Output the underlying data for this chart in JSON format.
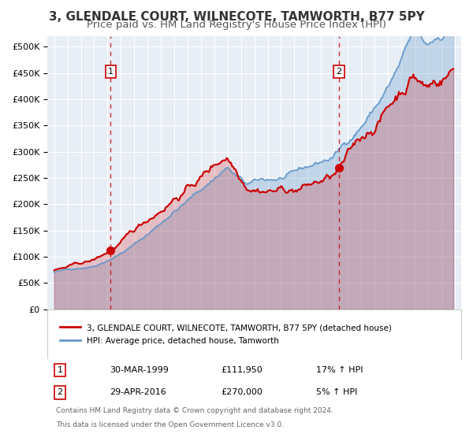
{
  "title": "3, GLENDALE COURT, WILNECOTE, TAMWORTH, B77 5PY",
  "subtitle": "Price paid vs. HM Land Registry's House Price Index (HPI)",
  "hpi_label": "HPI: Average price, detached house, Tamworth",
  "property_label": "3, GLENDALE COURT, WILNECOTE, TAMWORTH, B77 5PY (detached house)",
  "footnote1": "Contains HM Land Registry data © Crown copyright and database right 2024.",
  "footnote2": "This data is licensed under the Open Government Licence v3.0.",
  "sale1_date": "30-MAR-1999",
  "sale1_price": "£111,950",
  "sale1_hpi": "17% ↑ HPI",
  "sale2_date": "29-APR-2016",
  "sale2_price": "£270,000",
  "sale2_hpi": "5% ↑ HPI",
  "sale1_x": 1999.24,
  "sale1_y": 111950,
  "sale2_x": 2016.33,
  "sale2_y": 270000,
  "vline1_x": 1999.24,
  "vline2_x": 2016.33,
  "ylim": [
    0,
    520000
  ],
  "xlim": [
    1994.5,
    2025.5
  ],
  "property_color": "#cc0000",
  "hpi_color": "#6699cc",
  "background_color": "#e8eef5",
  "grid_color": "#ffffff",
  "vline_color": "#cc0000",
  "title_fontsize": 11,
  "subtitle_fontsize": 9.5
}
